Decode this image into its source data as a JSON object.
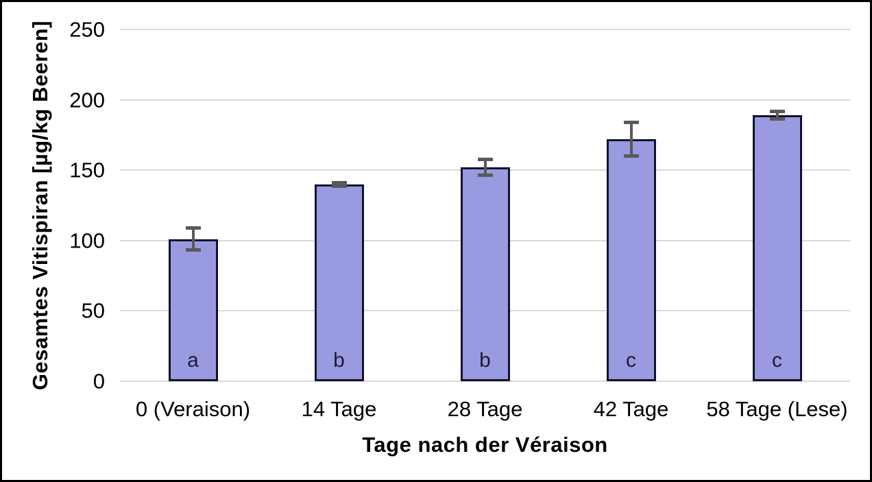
{
  "chart_data": {
    "type": "bar",
    "xlabel": "Tage nach der Véraison",
    "ylabel": "Gesamtes Vitispiran [µg/kg Beeren]",
    "categories": [
      "0 (Veraison)",
      "14 Tage",
      "28 Tage",
      "42 Tage",
      "58 Tage (Lese)"
    ],
    "values": [
      101,
      140,
      152,
      172,
      189
    ],
    "error_bars": [
      8,
      1.5,
      6,
      12,
      3
    ],
    "significance_letters": [
      "a",
      "b",
      "b",
      "c",
      "c"
    ],
    "ylim": [
      0,
      250
    ],
    "yticks": [
      0,
      50,
      100,
      150,
      200,
      250
    ],
    "grid": "horizontal gridlines on",
    "legend": "none",
    "colors": {
      "bar_fill": "#9A9AE0",
      "bar_border": "#12122B",
      "error_bar": "#595959",
      "gridline": "#D9D9D9",
      "text": "#000000",
      "letter": "#1A1A33"
    }
  }
}
